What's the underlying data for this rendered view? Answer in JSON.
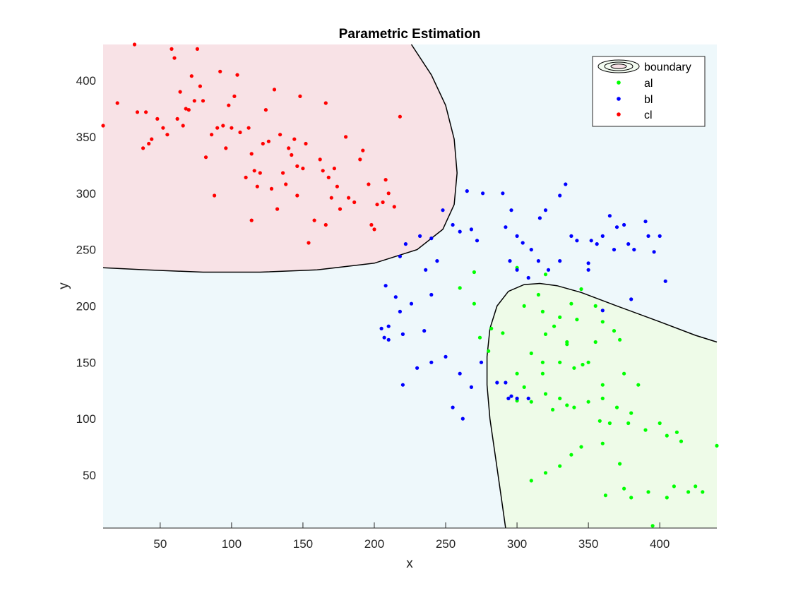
{
  "chart_data": {
    "type": "scatter",
    "title": "Parametric Estimation",
    "xlabel": "x",
    "ylabel": "y",
    "xlim": [
      10,
      440
    ],
    "ylim": [
      3,
      432
    ],
    "xticks": [
      50,
      100,
      150,
      200,
      250,
      300,
      350,
      400
    ],
    "yticks": [
      50,
      100,
      150,
      200,
      250,
      300,
      350,
      400
    ],
    "grid": false,
    "legend_position": "top-right",
    "legend": [
      "boundary",
      "al",
      "bl",
      "cl"
    ],
    "regions": {
      "background": "#eef8fb",
      "cl_region": "#f8e2e6",
      "al_region": "#eefbe8"
    },
    "boundaries": [
      {
        "name": "cl-boundary",
        "points": [
          [
            10,
            234
          ],
          [
            40,
            232
          ],
          [
            80,
            230
          ],
          [
            120,
            230
          ],
          [
            160,
            232
          ],
          [
            200,
            238
          ],
          [
            230,
            250
          ],
          [
            248,
            268
          ],
          [
            256,
            290
          ],
          [
            258,
            318
          ],
          [
            256,
            348
          ],
          [
            250,
            378
          ],
          [
            240,
            405
          ],
          [
            226,
            432
          ]
        ]
      },
      {
        "name": "al-boundary",
        "points": [
          [
            440,
            168
          ],
          [
            425,
            174
          ],
          [
            400,
            186
          ],
          [
            370,
            200
          ],
          [
            345,
            212
          ],
          [
            328,
            218
          ],
          [
            316,
            220
          ],
          [
            305,
            219
          ],
          [
            294,
            213
          ],
          [
            286,
            200
          ],
          [
            281,
            180
          ],
          [
            279,
            155
          ],
          [
            279,
            130
          ],
          [
            281,
            100
          ],
          [
            285,
            65
          ],
          [
            289,
            30
          ],
          [
            292,
            3
          ]
        ]
      }
    ],
    "series": [
      {
        "name": "al",
        "color": "#00ff00",
        "points": [
          [
            270,
            230
          ],
          [
            260,
            216
          ],
          [
            270,
            202
          ],
          [
            282,
            180
          ],
          [
            274,
            172
          ],
          [
            280,
            160
          ],
          [
            300,
            234
          ],
          [
            320,
            228
          ],
          [
            315,
            210
          ],
          [
            305,
            200
          ],
          [
            318,
            195
          ],
          [
            330,
            190
          ],
          [
            338,
            202
          ],
          [
            345,
            215
          ],
          [
            342,
            188
          ],
          [
            355,
            200
          ],
          [
            360,
            186
          ],
          [
            320,
            175
          ],
          [
            335,
            168
          ],
          [
            310,
            158
          ],
          [
            318,
            150
          ],
          [
            330,
            150
          ],
          [
            355,
            168
          ],
          [
            368,
            178
          ],
          [
            372,
            170
          ],
          [
            300,
            140
          ],
          [
            318,
            140
          ],
          [
            340,
            145
          ],
          [
            350,
            150
          ],
          [
            360,
            130
          ],
          [
            375,
            140
          ],
          [
            385,
            130
          ],
          [
            305,
            128
          ],
          [
            320,
            122
          ],
          [
            330,
            118
          ],
          [
            340,
            110
          ],
          [
            350,
            115
          ],
          [
            360,
            118
          ],
          [
            370,
            110
          ],
          [
            380,
            105
          ],
          [
            300,
            116
          ],
          [
            310,
            115
          ],
          [
            325,
            108
          ],
          [
            335,
            112
          ],
          [
            358,
            98
          ],
          [
            378,
            96
          ],
          [
            365,
            96
          ],
          [
            390,
            90
          ],
          [
            400,
            96
          ],
          [
            412,
            88
          ],
          [
            405,
            85
          ],
          [
            415,
            80
          ],
          [
            360,
            78
          ],
          [
            372,
            60
          ],
          [
            345,
            75
          ],
          [
            338,
            68
          ],
          [
            330,
            58
          ],
          [
            320,
            52
          ],
          [
            310,
            45
          ],
          [
            362,
            32
          ],
          [
            375,
            38
          ],
          [
            380,
            30
          ],
          [
            392,
            35
          ],
          [
            405,
            30
          ],
          [
            410,
            40
          ],
          [
            420,
            35
          ],
          [
            425,
            40
          ],
          [
            430,
            35
          ],
          [
            440,
            76
          ],
          [
            395,
            5
          ],
          [
            346,
            148
          ],
          [
            335,
            166
          ],
          [
            326,
            182
          ],
          [
            290,
            176
          ]
        ]
      },
      {
        "name": "bl",
        "color": "#0000ff",
        "points": [
          [
            208,
            218
          ],
          [
            215,
            208
          ],
          [
            218,
            195
          ],
          [
            210,
            182
          ],
          [
            205,
            180
          ],
          [
            207,
            172
          ],
          [
            220,
            175
          ],
          [
            235,
            178
          ],
          [
            240,
            150
          ],
          [
            230,
            145
          ],
          [
            220,
            130
          ],
          [
            250,
            155
          ],
          [
            260,
            140
          ],
          [
            268,
            128
          ],
          [
            255,
            110
          ],
          [
            262,
            100
          ],
          [
            275,
            150
          ],
          [
            286,
            132
          ],
          [
            292,
            132
          ],
          [
            294,
            118
          ],
          [
            296,
            120
          ],
          [
            300,
            118
          ],
          [
            308,
            118
          ],
          [
            218,
            244
          ],
          [
            222,
            255
          ],
          [
            232,
            262
          ],
          [
            240,
            260
          ],
          [
            248,
            285
          ],
          [
            255,
            272
          ],
          [
            260,
            266
          ],
          [
            268,
            268
          ],
          [
            272,
            258
          ],
          [
            265,
            302
          ],
          [
            276,
            300
          ],
          [
            290,
            300
          ],
          [
            296,
            285
          ],
          [
            300,
            262
          ],
          [
            304,
            256
          ],
          [
            310,
            250
          ],
          [
            316,
            278
          ],
          [
            320,
            285
          ],
          [
            330,
            298
          ],
          [
            334,
            308
          ],
          [
            338,
            262
          ],
          [
            342,
            258
          ],
          [
            352,
            258
          ],
          [
            356,
            255
          ],
          [
            360,
            262
          ],
          [
            365,
            280
          ],
          [
            370,
            270
          ],
          [
            375,
            272
          ],
          [
            378,
            255
          ],
          [
            382,
            250
          ],
          [
            390,
            275
          ],
          [
            392,
            262
          ],
          [
            396,
            248
          ],
          [
            400,
            262
          ],
          [
            404,
            222
          ],
          [
            380,
            206
          ],
          [
            360,
            196
          ],
          [
            350,
            232
          ],
          [
            330,
            240
          ],
          [
            322,
            232
          ],
          [
            300,
            232
          ],
          [
            308,
            225
          ],
          [
            292,
            270
          ],
          [
            295,
            240
          ],
          [
            236,
            232
          ],
          [
            244,
            240
          ],
          [
            226,
            202
          ],
          [
            210,
            170
          ],
          [
            240,
            210
          ],
          [
            350,
            238
          ],
          [
            368,
            250
          ],
          [
            315,
            240
          ]
        ]
      },
      {
        "name": "cl",
        "color": "#ff0000",
        "points": [
          [
            10,
            360
          ],
          [
            20,
            380
          ],
          [
            32,
            432
          ],
          [
            34,
            372
          ],
          [
            38,
            340
          ],
          [
            42,
            344
          ],
          [
            44,
            348
          ],
          [
            40,
            372
          ],
          [
            48,
            366
          ],
          [
            52,
            358
          ],
          [
            55,
            352
          ],
          [
            58,
            428
          ],
          [
            60,
            420
          ],
          [
            62,
            366
          ],
          [
            64,
            390
          ],
          [
            66,
            360
          ],
          [
            68,
            375
          ],
          [
            70,
            374
          ],
          [
            72,
            404
          ],
          [
            74,
            382
          ],
          [
            76,
            428
          ],
          [
            78,
            395
          ],
          [
            80,
            382
          ],
          [
            82,
            332
          ],
          [
            86,
            352
          ],
          [
            88,
            298
          ],
          [
            90,
            358
          ],
          [
            92,
            408
          ],
          [
            94,
            360
          ],
          [
            96,
            340
          ],
          [
            98,
            378
          ],
          [
            100,
            358
          ],
          [
            102,
            386
          ],
          [
            104,
            405
          ],
          [
            106,
            354
          ],
          [
            110,
            314
          ],
          [
            112,
            358
          ],
          [
            114,
            335
          ],
          [
            116,
            320
          ],
          [
            118,
            306
          ],
          [
            120,
            318
          ],
          [
            122,
            344
          ],
          [
            124,
            374
          ],
          [
            126,
            346
          ],
          [
            128,
            304
          ],
          [
            130,
            392
          ],
          [
            132,
            286
          ],
          [
            134,
            352
          ],
          [
            136,
            318
          ],
          [
            140,
            340
          ],
          [
            142,
            334
          ],
          [
            144,
            348
          ],
          [
            146,
            324
          ],
          [
            148,
            386
          ],
          [
            150,
            322
          ],
          [
            152,
            344
          ],
          [
            154,
            256
          ],
          [
            158,
            276
          ],
          [
            162,
            330
          ],
          [
            164,
            320
          ],
          [
            166,
            272
          ],
          [
            168,
            314
          ],
          [
            170,
            296
          ],
          [
            172,
            322
          ],
          [
            174,
            306
          ],
          [
            176,
            286
          ],
          [
            180,
            350
          ],
          [
            182,
            296
          ],
          [
            186,
            292
          ],
          [
            190,
            330
          ],
          [
            192,
            338
          ],
          [
            196,
            308
          ],
          [
            198,
            272
          ],
          [
            200,
            268
          ],
          [
            202,
            290
          ],
          [
            206,
            292
          ],
          [
            208,
            312
          ],
          [
            210,
            300
          ],
          [
            214,
            288
          ],
          [
            218,
            368
          ],
          [
            114,
            276
          ],
          [
            146,
            298
          ],
          [
            166,
            380
          ],
          [
            138,
            308
          ]
        ]
      }
    ]
  }
}
